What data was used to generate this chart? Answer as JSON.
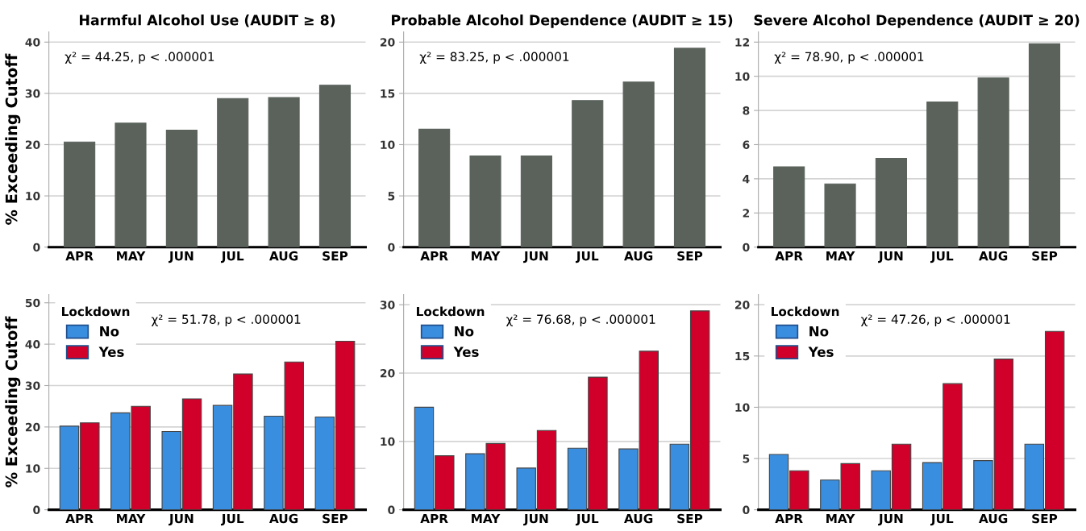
{
  "chart_data": [
    {
      "type": "bar",
      "title": "Harmful Alcohol Use (AUDIT ≥ 8)",
      "ylabel": "% Exceeding Cutoff",
      "categories": [
        "APR",
        "MAY",
        "JUN",
        "JUL",
        "AUG",
        "SEP"
      ],
      "series": [
        {
          "color": "#5a625b",
          "values": [
            20.5,
            24.2,
            22.8,
            29.0,
            29.2,
            31.6
          ]
        }
      ],
      "ylim": [
        0,
        42
      ],
      "yticks": [
        0,
        10,
        20,
        30,
        40
      ],
      "grid": "y",
      "annotations": [
        "χ² = 44.25, p < .000001"
      ]
    },
    {
      "type": "bar",
      "title": "Probable Alcohol Dependence (AUDIT ≥ 15)",
      "categories": [
        "APR",
        "MAY",
        "JUN",
        "JUL",
        "AUG",
        "SEP"
      ],
      "series": [
        {
          "color": "#5a625b",
          "values": [
            11.5,
            8.9,
            8.9,
            14.3,
            16.1,
            19.4
          ]
        }
      ],
      "ylim": [
        0,
        21
      ],
      "yticks": [
        0,
        5,
        10,
        15,
        20
      ],
      "grid": "y",
      "annotations": [
        "χ² = 83.25, p < .000001"
      ]
    },
    {
      "type": "bar",
      "title": "Severe Alcohol Dependence (AUDIT ≥ 20)",
      "categories": [
        "APR",
        "MAY",
        "JUN",
        "JUL",
        "AUG",
        "SEP"
      ],
      "series": [
        {
          "color": "#5a625b",
          "values": [
            4.7,
            3.7,
            5.2,
            8.5,
            9.9,
            11.9
          ]
        }
      ],
      "ylim": [
        0,
        12.6
      ],
      "yticks": [
        0,
        2,
        4,
        6,
        8,
        10,
        12
      ],
      "grid": "y",
      "annotations": [
        "χ² = 78.90, p < .000001"
      ]
    },
    {
      "type": "bar",
      "ylabel": "% Exceeding Cutoff",
      "categories": [
        "APR",
        "MAY",
        "JUN",
        "JUL",
        "AUG",
        "SEP"
      ],
      "legend_title": "Lockdown",
      "legend": "top left",
      "series": [
        {
          "name": "No",
          "color": "#3a8ee0",
          "values": [
            20.2,
            23.4,
            18.9,
            25.2,
            22.6,
            22.4
          ]
        },
        {
          "name": "Yes",
          "color": "#d0002a",
          "values": [
            21.0,
            25.0,
            26.8,
            32.8,
            35.7,
            40.7
          ]
        }
      ],
      "ylim": [
        0,
        52
      ],
      "yticks": [
        0,
        10,
        20,
        30,
        40,
        50
      ],
      "grid": "y",
      "annotations": [
        "χ² = 51.78, p < .000001"
      ]
    },
    {
      "type": "bar",
      "categories": [
        "APR",
        "MAY",
        "JUN",
        "JUL",
        "AUG",
        "SEP"
      ],
      "legend_title": "Lockdown",
      "legend": "top left",
      "series": [
        {
          "name": "No",
          "color": "#3a8ee0",
          "values": [
            15.0,
            8.2,
            6.1,
            9.0,
            8.9,
            9.6
          ]
        },
        {
          "name": "Yes",
          "color": "#d0002a",
          "values": [
            7.9,
            9.7,
            11.6,
            19.4,
            23.2,
            29.1
          ]
        }
      ],
      "ylim": [
        0,
        31.5
      ],
      "yticks": [
        0,
        10,
        20,
        30
      ],
      "grid": "y",
      "annotations": [
        "χ² = 76.68, p < .000001"
      ]
    },
    {
      "type": "bar",
      "categories": [
        "APR",
        "MAY",
        "JUN",
        "JUL",
        "AUG",
        "SEP"
      ],
      "legend_title": "Lockdown",
      "legend": "top left",
      "series": [
        {
          "name": "No",
          "color": "#3a8ee0",
          "values": [
            5.4,
            2.9,
            3.8,
            4.6,
            4.8,
            6.4
          ]
        },
        {
          "name": "Yes",
          "color": "#d0002a",
          "values": [
            3.8,
            4.5,
            6.4,
            12.3,
            14.7,
            17.4
          ]
        }
      ],
      "ylim": [
        0,
        21
      ],
      "yticks": [
        0,
        5,
        10,
        15,
        20
      ],
      "grid": "y",
      "annotations": [
        "χ² = 47.26, p < .000001"
      ]
    }
  ]
}
